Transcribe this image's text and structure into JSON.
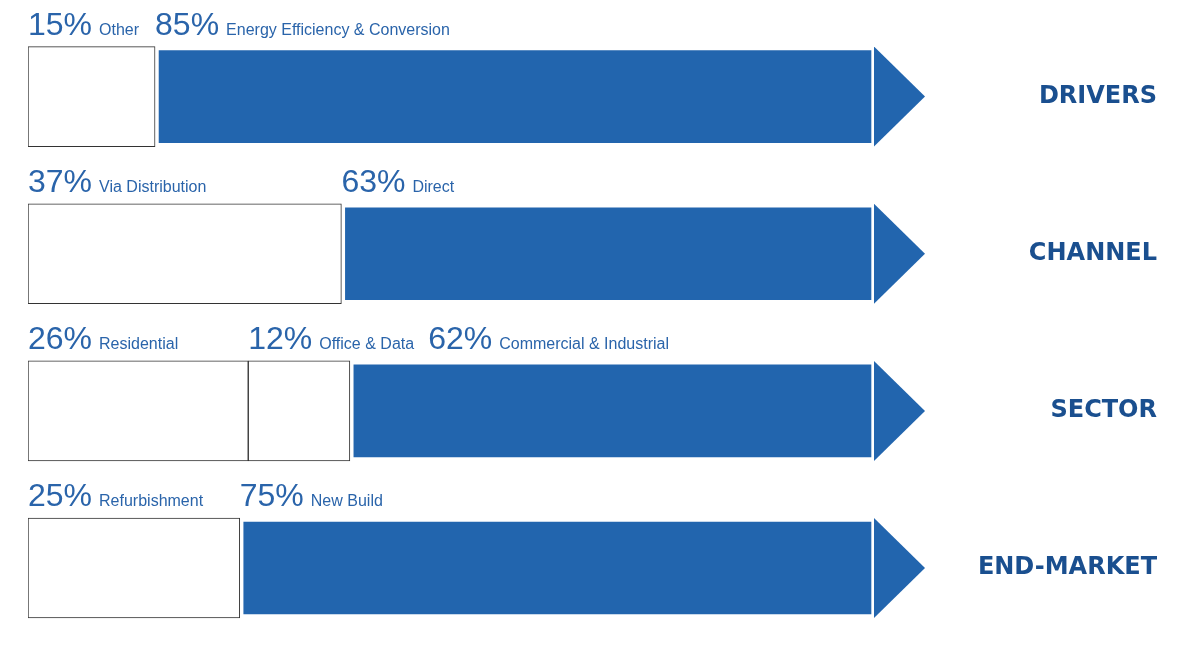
{
  "chart_data": {
    "type": "bar",
    "orientation": "horizontal",
    "stacked": true,
    "tick_labels": "y",
    "xlim": [
      0,
      100
    ],
    "categories": [
      "DRIVERS",
      "CHANNEL",
      "SECTOR",
      "END-MARKET"
    ],
    "series": [
      {
        "name": "Other",
        "color": "#ffffff",
        "values": [
          15,
          null,
          null,
          null
        ],
        "value_labels": [
          "15%",
          null,
          null,
          null
        ]
      },
      {
        "name": "Energy Efficiency & Conversion",
        "color": "#2265ae",
        "values": [
          85,
          null,
          null,
          null
        ],
        "value_labels": [
          "85%",
          null,
          null,
          null
        ]
      },
      {
        "name": "Via Distribution",
        "color": "#ffffff",
        "values": [
          null,
          37,
          null,
          null
        ],
        "value_labels": [
          null,
          "37%",
          null,
          null
        ]
      },
      {
        "name": "Direct",
        "color": "#2265ae",
        "values": [
          null,
          63,
          null,
          null
        ],
        "value_labels": [
          null,
          "63%",
          null,
          null
        ]
      },
      {
        "name": "Residential",
        "color": "#ffffff",
        "values": [
          null,
          null,
          26,
          null
        ],
        "value_labels": [
          null,
          null,
          "26%",
          null
        ]
      },
      {
        "name": "Office & Data",
        "color": "#ffffff",
        "values": [
          null,
          null,
          12,
          null
        ],
        "value_labels": [
          null,
          null,
          "12%",
          null
        ]
      },
      {
        "name": "Commercial & Industrial",
        "color": "#2265ae",
        "values": [
          null,
          null,
          62,
          null
        ],
        "value_labels": [
          null,
          null,
          "62%",
          null
        ]
      },
      {
        "name": "Refurbishment",
        "color": "#ffffff",
        "values": [
          null,
          null,
          null,
          25
        ],
        "value_labels": [
          null,
          null,
          null,
          "25%"
        ]
      },
      {
        "name": "New Build",
        "color": "#2265ae",
        "values": [
          null,
          null,
          null,
          75
        ],
        "value_labels": [
          null,
          null,
          null,
          "75%"
        ]
      }
    ]
  }
}
